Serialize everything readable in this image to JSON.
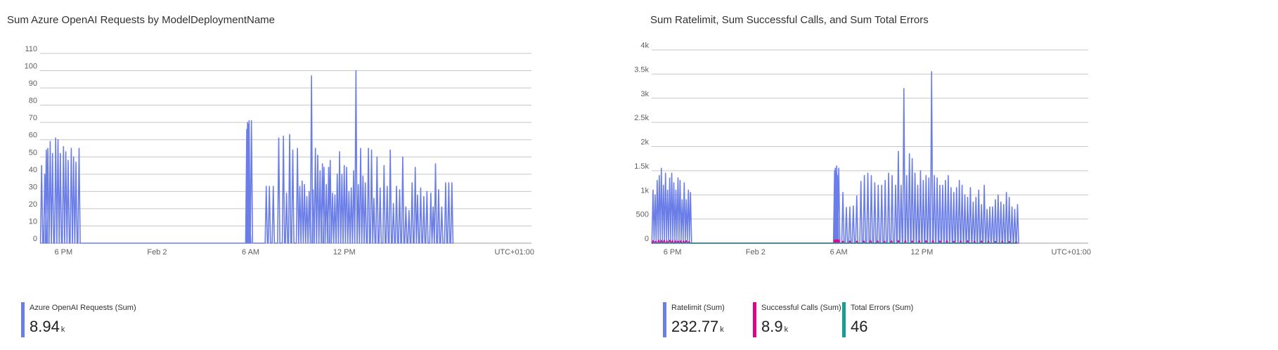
{
  "left": {
    "title": "Sum Azure OpenAI Requests by ModelDeploymentName",
    "legend": [
      {
        "name": "Azure OpenAI Requests (Sum)",
        "value": "8.94",
        "unit": "k",
        "color": "#6b7ee8"
      }
    ]
  },
  "right": {
    "title": "Sum Ratelimit, Sum Successful Calls, and Sum Total Errors",
    "legend": [
      {
        "name": "Ratelimit (Sum)",
        "value": "232.77",
        "unit": "k",
        "color": "#6b7ee8"
      },
      {
        "name": "Successful Calls (Sum)",
        "value": "8.9",
        "unit": "k",
        "color": "#e3008c"
      },
      {
        "name": "Total Errors (Sum)",
        "value": "46",
        "unit": "",
        "color": "#169e96"
      }
    ]
  },
  "chart_data": [
    {
      "type": "line",
      "title": "Sum Azure OpenAI Requests by ModelDeploymentName",
      "ylim": [
        0,
        110
      ],
      "yticks": [
        "0",
        "10",
        "20",
        "30",
        "40",
        "50",
        "60",
        "70",
        "80",
        "90",
        "100",
        "110"
      ],
      "xlim": [
        16.5,
        48
      ],
      "xticks": [
        {
          "label": "6 PM",
          "x": 18
        },
        {
          "label": "Feb 2",
          "x": 24
        },
        {
          "label": "6 AM",
          "x": 30
        },
        {
          "label": "12 PM",
          "x": 36
        }
      ],
      "timezone_label": "UTC+01:00",
      "grid": true,
      "series": [
        {
          "name": "Azure OpenAI Requests (Sum)",
          "color": "#6b7ee8",
          "x": [
            16.6,
            16.8,
            16.9,
            17.0,
            17.15,
            17.3,
            17.5,
            17.65,
            17.8,
            18.0,
            18.15,
            18.3,
            18.5,
            18.65,
            18.8,
            19.0,
            19.15,
            19.35,
            19.55,
            29.75,
            29.8,
            29.85,
            29.9,
            29.95,
            30.05,
            31.0,
            31.2,
            31.45,
            31.8,
            32.1,
            32.3,
            32.5,
            32.7,
            33.0,
            33.15,
            33.3,
            33.45,
            33.6,
            33.75,
            33.9,
            34.0,
            34.15,
            34.3,
            34.45,
            34.6,
            34.7,
            34.85,
            35.0,
            35.1,
            35.25,
            35.4,
            35.55,
            35.7,
            35.85,
            36.0,
            36.15,
            36.3,
            36.45,
            36.6,
            36.75,
            36.9,
            37.05,
            37.2,
            37.35,
            37.55,
            37.75,
            37.9,
            38.1,
            38.3,
            38.55,
            38.75,
            38.95,
            39.15,
            39.35,
            39.55,
            39.75,
            39.95,
            40.15,
            40.35,
            40.55,
            40.7,
            40.9,
            41.1,
            41.3,
            41.55,
            41.7,
            41.85,
            42.05,
            42.25,
            42.5,
            42.7,
            42.9
          ],
          "y": [
            45,
            40,
            54,
            55,
            59,
            52,
            61,
            60,
            52,
            56,
            53,
            48,
            55,
            50,
            47,
            55,
            0,
            0,
            0,
            66,
            70,
            69,
            71,
            10,
            71,
            33,
            33,
            33,
            61,
            62,
            29,
            63,
            54,
            55,
            33,
            36,
            34,
            27,
            30,
            97,
            31,
            55,
            51,
            42,
            46,
            44,
            34,
            44,
            48,
            29,
            28,
            40,
            53,
            40,
            45,
            44,
            30,
            32,
            42,
            100,
            34,
            55,
            39,
            35,
            55,
            54,
            26,
            50,
            32,
            45,
            33,
            54,
            23,
            33,
            31,
            50,
            21,
            19,
            35,
            44,
            28,
            32,
            27,
            30,
            29,
            21,
            46,
            31,
            21,
            35,
            35,
            35
          ]
        }
      ]
    },
    {
      "type": "line",
      "title": "Sum Ratelimit, Sum Successful Calls, and Sum Total Errors",
      "ylim": [
        0,
        4000
      ],
      "yticks": [
        "0",
        "500",
        "1k",
        "1.5k",
        "2k",
        "2.5k",
        "3k",
        "3.5k",
        "4k"
      ],
      "xlim": [
        16.5,
        48
      ],
      "xticks": [
        {
          "label": "6 PM",
          "x": 18
        },
        {
          "label": "Feb 2",
          "x": 24
        },
        {
          "label": "6 AM",
          "x": 30
        },
        {
          "label": "12 PM",
          "x": 36
        }
      ],
      "timezone_label": "UTC+01:00",
      "grid": true,
      "series": [
        {
          "name": "Ratelimit (Sum)",
          "color": "#6b7ee8",
          "x": [
            16.6,
            16.75,
            16.9,
            17.05,
            17.2,
            17.35,
            17.5,
            17.65,
            17.8,
            17.95,
            18.1,
            18.25,
            18.4,
            18.55,
            18.7,
            18.85,
            19.0,
            19.15,
            19.3,
            19.6,
            29.7,
            29.75,
            29.8,
            29.85,
            29.9,
            30.0,
            30.3,
            30.55,
            30.8,
            31.05,
            31.3,
            31.6,
            31.85,
            32.1,
            32.35,
            32.6,
            32.85,
            33.1,
            33.35,
            33.6,
            33.85,
            34.1,
            34.3,
            34.5,
            34.7,
            34.9,
            35.1,
            35.3,
            35.5,
            35.7,
            35.9,
            36.1,
            36.3,
            36.5,
            36.7,
            36.9,
            37.1,
            37.3,
            37.5,
            37.7,
            37.9,
            38.1,
            38.3,
            38.5,
            38.7,
            38.9,
            39.1,
            39.3,
            39.5,
            39.7,
            39.9,
            40.1,
            40.3,
            40.5,
            40.7,
            40.9,
            41.1,
            41.3,
            41.5,
            41.7,
            41.9,
            42.1,
            42.3,
            42.5,
            42.7,
            42.9
          ],
          "y": [
            1100,
            1000,
            1300,
            1400,
            1550,
            1200,
            1450,
            1100,
            1350,
            1450,
            1250,
            1100,
            1350,
            1300,
            900,
            1250,
            900,
            1100,
            1050,
            0,
            1500,
            1550,
            1450,
            1600,
            1400,
            1550,
            1050,
            740,
            750,
            770,
            980,
            1280,
            1400,
            1450,
            1400,
            1250,
            1200,
            1200,
            1300,
            1450,
            1400,
            1200,
            1900,
            1200,
            3200,
            1400,
            1850,
            1750,
            1450,
            1200,
            1500,
            1300,
            1400,
            1350,
            3550,
            1400,
            1350,
            1200,
            1200,
            1300,
            1400,
            1150,
            1050,
            1150,
            1300,
            1200,
            1000,
            950,
            1150,
            850,
            950,
            1100,
            800,
            1200,
            700,
            750,
            750,
            900,
            1000,
            850,
            800,
            1050,
            950,
            750,
            700,
            800
          ]
        },
        {
          "name": "Successful Calls (Sum)",
          "color": "#e3008c",
          "x": [
            16.6,
            16.8,
            17.0,
            17.2,
            17.4,
            17.6,
            17.8,
            18.0,
            18.2,
            18.4,
            18.6,
            18.8,
            19.0,
            19.2,
            19.5,
            29.7,
            29.8,
            29.9,
            30.0,
            30.3,
            30.8,
            31.3,
            31.8,
            32.3,
            32.8,
            33.3,
            33.8,
            34.3,
            34.8,
            35.3,
            35.8,
            36.3,
            36.8,
            37.3,
            37.8,
            38.3,
            38.8,
            39.3,
            39.8,
            40.3,
            40.8,
            41.3,
            41.8,
            42.3,
            42.8
          ],
          "y": [
            50,
            40,
            60,
            55,
            60,
            45,
            60,
            50,
            55,
            40,
            55,
            45,
            50,
            35,
            0,
            70,
            70,
            70,
            70,
            40,
            45,
            40,
            50,
            55,
            50,
            40,
            50,
            55,
            50,
            45,
            55,
            50,
            60,
            45,
            55,
            40,
            45,
            50,
            40,
            45,
            40,
            35,
            40,
            35,
            30
          ]
        },
        {
          "name": "Total Errors (Sum)",
          "color": "#169e96",
          "x": [
            16.6,
            20.0,
            24.0,
            28.0,
            32.0,
            36.0,
            40.0,
            42.9
          ],
          "y": [
            0,
            0,
            0,
            0,
            0,
            0,
            0,
            0
          ]
        }
      ]
    }
  ]
}
